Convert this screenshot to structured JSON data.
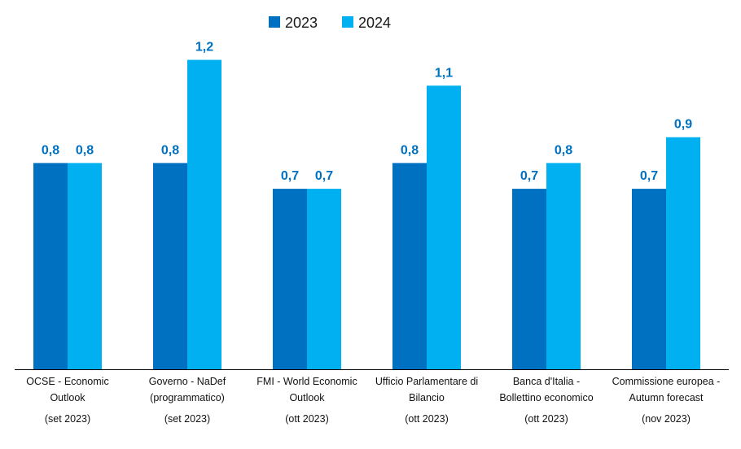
{
  "colors": {
    "series_2023": "#0070c0",
    "series_2024": "#00b0f0",
    "value_label": "#0070c0",
    "axis": "#000000"
  },
  "chart_data": {
    "type": "bar",
    "title": "",
    "xlabel": "",
    "ylabel": "",
    "ylim": [
      0,
      1.3
    ],
    "grid": false,
    "legend": {
      "placement": "top-center",
      "entries": [
        "2023",
        "2024"
      ]
    },
    "categories": [
      [
        "OCSE - Economic",
        "Outlook",
        "(set 2023)"
      ],
      [
        "Governo - NaDef",
        "(programmatico)",
        "(set 2023)"
      ],
      [
        "FMI - World Economic",
        "Outlook",
        "(ott 2023)"
      ],
      [
        "Ufficio Parlamentare di",
        "Bilancio",
        "(ott 2023)"
      ],
      [
        "Banca d'Italia -",
        "Bollettino economico",
        "(ott 2023)"
      ],
      [
        "Commissione europea -",
        "Autumn forecast",
        "(nov 2023)"
      ]
    ],
    "series": [
      {
        "name": "2023",
        "values": [
          0.8,
          0.8,
          0.7,
          0.8,
          0.7,
          0.7
        ],
        "labels": [
          "0,8",
          "0,8",
          "0,7",
          "0,8",
          "0,7",
          "0,7"
        ]
      },
      {
        "name": "2024",
        "values": [
          0.8,
          1.2,
          0.7,
          1.1,
          0.8,
          0.9
        ],
        "labels": [
          "0,8",
          "1,2",
          "0,7",
          "1,1",
          "0,8",
          "0,9"
        ]
      }
    ]
  }
}
